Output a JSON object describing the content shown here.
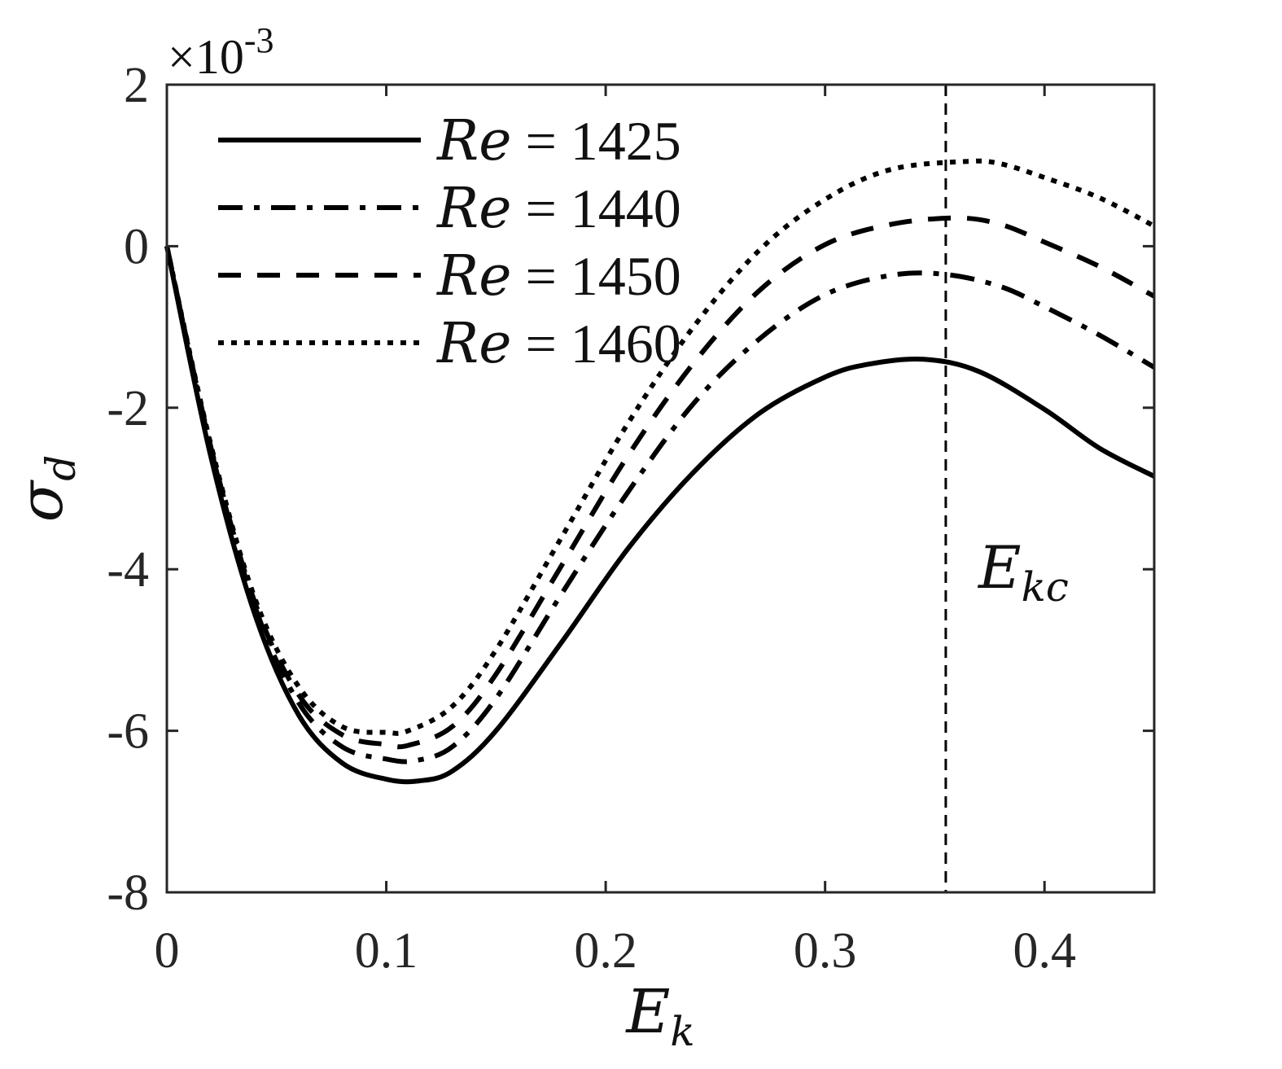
{
  "chart_data": {
    "type": "line",
    "xlabel": {
      "base": "E",
      "sub": "k"
    },
    "ylabel": {
      "base": "σ",
      "sub": "d"
    },
    "y_exponent": {
      "prefix": "×10",
      "power": "-3"
    },
    "xlim": [
      0,
      0.45
    ],
    "ylim": [
      -8,
      2
    ],
    "xticks": [
      0,
      0.1,
      0.2,
      0.3,
      0.4
    ],
    "xtick_labels": [
      "0",
      "0.1",
      "0.2",
      "0.3",
      "0.4"
    ],
    "yticks": [
      -8,
      -6,
      -4,
      -2,
      0,
      2
    ],
    "ytick_labels": [
      "-8",
      "-6",
      "-4",
      "-2",
      "0",
      "2"
    ],
    "grid": false,
    "legend_position": "top-left",
    "annotation": {
      "base": "E",
      "sub": "kc",
      "x": 0.355
    },
    "series": [
      {
        "name": "Re = 1425",
        "label_var": "Re",
        "label_value": "1425",
        "style": "solid",
        "x": [
          0,
          0.02,
          0.04,
          0.06,
          0.08,
          0.1,
          0.115,
          0.13,
          0.15,
          0.18,
          0.21,
          0.24,
          0.27,
          0.3,
          0.32,
          0.345,
          0.37,
          0.4,
          0.425,
          0.45
        ],
        "y": [
          0,
          -2.6,
          -4.55,
          -5.8,
          -6.4,
          -6.6,
          -6.62,
          -6.5,
          -6.0,
          -4.9,
          -3.75,
          -2.8,
          -2.07,
          -1.62,
          -1.46,
          -1.4,
          -1.55,
          -2.02,
          -2.5,
          -2.85
        ]
      },
      {
        "name": "Re = 1440",
        "label_var": "Re",
        "label_value": "1440",
        "style": "dashdot",
        "x": [
          0,
          0.02,
          0.04,
          0.06,
          0.08,
          0.1,
          0.113,
          0.13,
          0.15,
          0.18,
          0.21,
          0.24,
          0.27,
          0.3,
          0.33,
          0.355,
          0.38,
          0.4,
          0.425,
          0.45
        ],
        "y": [
          0,
          -2.5,
          -4.45,
          -5.65,
          -6.2,
          -6.35,
          -6.37,
          -6.2,
          -5.6,
          -4.3,
          -3.05,
          -1.95,
          -1.15,
          -0.6,
          -0.36,
          -0.35,
          -0.5,
          -0.75,
          -1.1,
          -1.5
        ]
      },
      {
        "name": "Re = 1450",
        "label_var": "Re",
        "label_value": "1450",
        "style": "dashed",
        "x": [
          0,
          0.02,
          0.04,
          0.06,
          0.08,
          0.1,
          0.11,
          0.13,
          0.15,
          0.18,
          0.21,
          0.24,
          0.27,
          0.3,
          0.33,
          0.36,
          0.38,
          0.4,
          0.425,
          0.45
        ],
        "y": [
          0,
          -2.48,
          -4.4,
          -5.55,
          -6.05,
          -6.17,
          -6.18,
          -5.95,
          -5.3,
          -3.95,
          -2.6,
          -1.45,
          -0.55,
          0.02,
          0.27,
          0.35,
          0.27,
          0.05,
          -0.25,
          -0.62
        ]
      },
      {
        "name": "Re = 1460",
        "label_var": "Re",
        "label_value": "1460",
        "style": "dotted",
        "x": [
          0,
          0.02,
          0.04,
          0.06,
          0.08,
          0.1,
          0.11,
          0.13,
          0.15,
          0.18,
          0.21,
          0.24,
          0.27,
          0.3,
          0.33,
          0.365,
          0.38,
          0.4,
          0.425,
          0.45
        ],
        "y": [
          0,
          -2.45,
          -4.35,
          -5.45,
          -5.95,
          -6.02,
          -6.0,
          -5.7,
          -5.0,
          -3.6,
          -2.2,
          -1.0,
          -0.05,
          0.58,
          0.95,
          1.05,
          1.02,
          0.85,
          0.6,
          0.25
        ]
      }
    ]
  }
}
